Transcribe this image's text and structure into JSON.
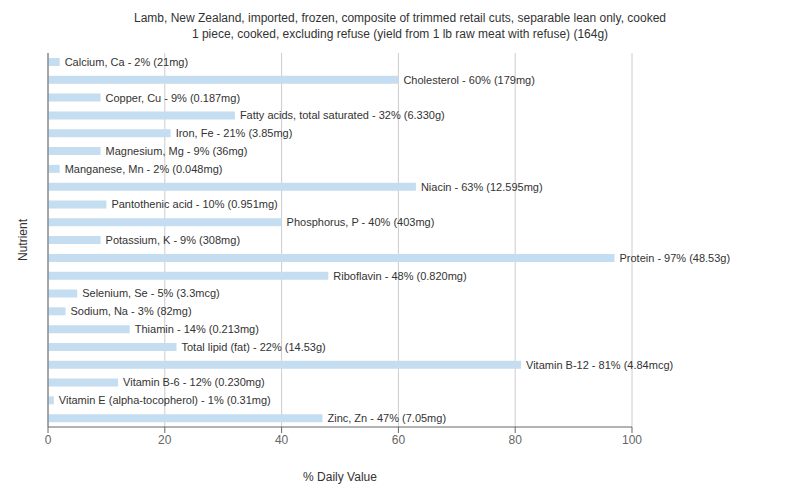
{
  "chart_data": {
    "type": "bar",
    "orientation": "horizontal",
    "title": "Lamb, New Zealand, imported, frozen, composite of trimmed retail cuts, separable lean only, cooked\n1 piece, cooked, excluding refuse (yield from 1 lb raw meat with refuse) (164g)",
    "xlabel": "% Daily Value",
    "ylabel": "Nutrient",
    "categories": [
      "Calcium, Ca - 2% (21mg)",
      "Cholesterol - 60% (179mg)",
      "Copper, Cu - 9% (0.187mg)",
      "Fatty acids, total saturated - 32% (6.330g)",
      "Iron, Fe - 21% (3.85mg)",
      "Magnesium, Mg - 9% (36mg)",
      "Manganese, Mn - 2% (0.048mg)",
      "Niacin - 63% (12.595mg)",
      "Pantothenic acid - 10% (0.951mg)",
      "Phosphorus, P - 40% (403mg)",
      "Potassium, K - 9% (308mg)",
      "Protein - 97% (48.53g)",
      "Riboflavin - 48% (0.820mg)",
      "Selenium, Se - 5% (3.3mcg)",
      "Sodium, Na - 3% (82mg)",
      "Thiamin - 14% (0.213mg)",
      "Total lipid (fat) - 22% (14.53g)",
      "Vitamin B-12 - 81% (4.84mcg)",
      "Vitamin B-6 - 12% (0.230mg)",
      "Vitamin E (alpha-tocopherol) - 1% (0.31mg)",
      "Zinc, Zn - 47% (7.05mg)"
    ],
    "values": [
      2,
      60,
      9,
      32,
      21,
      9,
      2,
      63,
      10,
      40,
      9,
      97,
      48,
      5,
      3,
      14,
      22,
      81,
      12,
      1,
      47
    ],
    "color": "#c5ddf0",
    "xlim": [
      0,
      100
    ],
    "xticks": [
      0,
      20,
      40,
      60,
      80,
      100
    ],
    "grid": true,
    "tick_labels": "x"
  }
}
